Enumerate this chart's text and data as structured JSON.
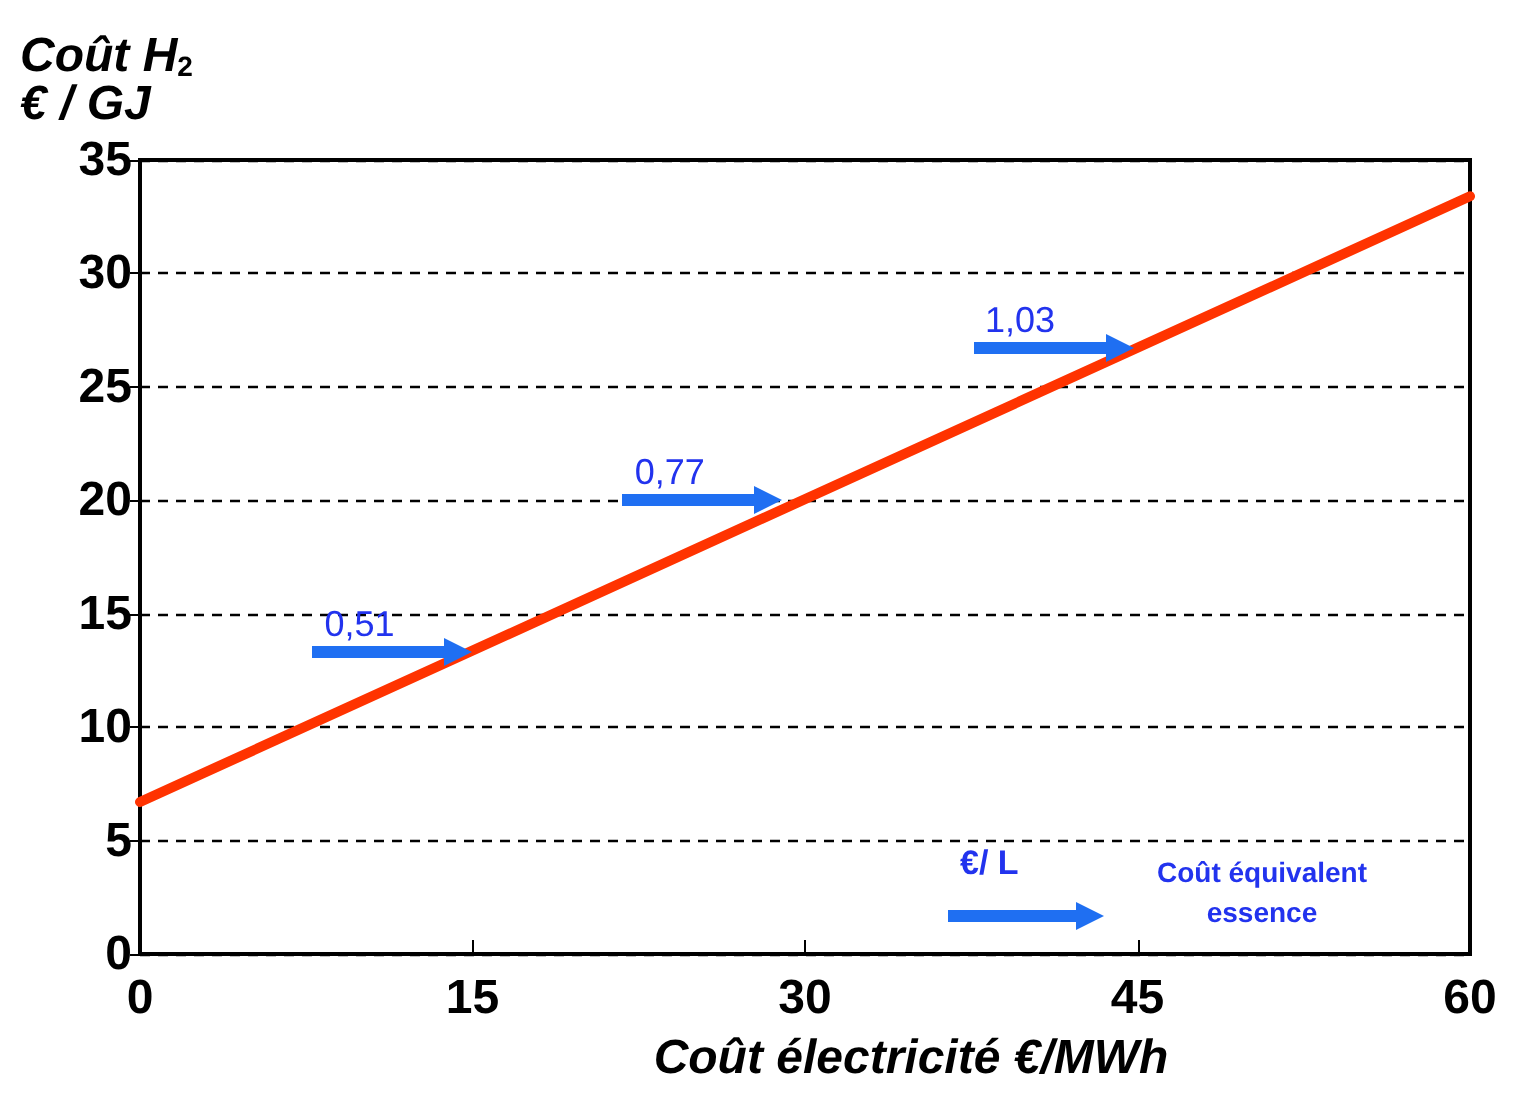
{
  "chart_data": {
    "type": "line",
    "ylabel": "Coût H$_{2}$\n€ / GJ",
    "xlabel": "Coût électricité €/MWh",
    "x": [
      0,
      60
    ],
    "series": [
      {
        "color": "#ff3300",
        "values": [
          6.7,
          33.4
        ]
      }
    ],
    "xlim": [
      0,
      60
    ],
    "xticks": [
      0,
      15,
      30,
      45,
      60
    ],
    "ylim": [
      0,
      35
    ],
    "yticks": [
      0,
      5,
      10,
      15,
      20,
      25,
      30,
      35
    ],
    "grid": "y",
    "line_style": "solid",
    "annotations": [
      {
        "text": "0,51",
        "x": 15,
        "y": 13.3
      },
      {
        "text": "0,77",
        "x": 29,
        "y": 20
      },
      {
        "text": "1,03",
        "x": 44.8,
        "y": 26.7
      },
      "€/ L",
      "Coût équivalent\nessence"
    ]
  }
}
